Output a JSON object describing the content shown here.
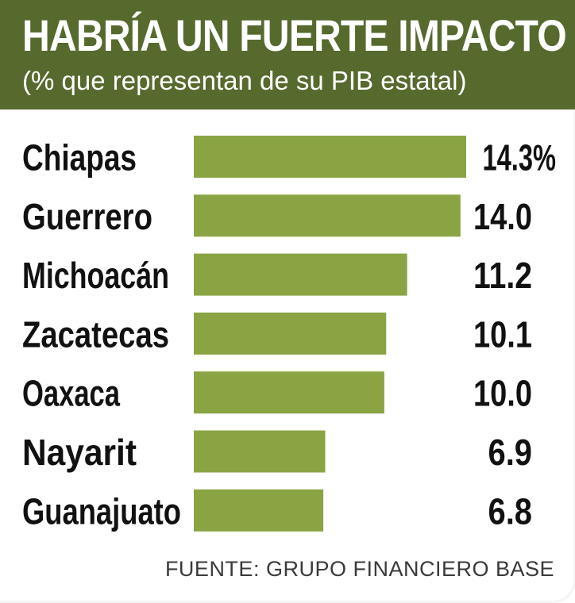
{
  "title": "HABRÍA UN FUERTE IMPACTO",
  "subtitle": "(% que representan de su PIB estatal)",
  "source": "FUENTE: GRUPO FINANCIERO BASE",
  "colors": {
    "header": "#566a2e",
    "bar": "#8aa443",
    "text": "#111111"
  },
  "chart_data": {
    "type": "bar",
    "orientation": "horizontal",
    "title": "HABRÍA UN FUERTE IMPACTO",
    "subtitle": "(% que representan de su PIB estatal)",
    "xlabel": "",
    "ylabel": "",
    "grid": false,
    "xlim": [
      0,
      14.3
    ],
    "categories": [
      "Chiapas",
      "Guerrero",
      "Michoacán",
      "Zacatecas",
      "Oaxaca",
      "Nayarit",
      "Guanajuato"
    ],
    "values": [
      14.3,
      14.0,
      11.2,
      10.1,
      10.0,
      6.9,
      6.8
    ],
    "value_labels": [
      "14.3%",
      "14.0",
      "11.2",
      "10.1",
      "10.0",
      "6.9",
      "6.8"
    ]
  }
}
